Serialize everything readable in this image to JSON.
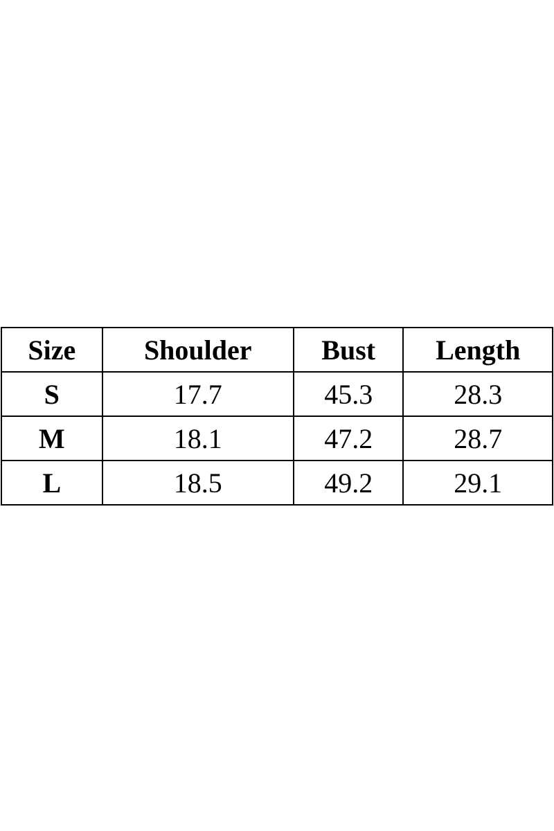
{
  "table": {
    "headers": [
      "Size",
      "Shoulder",
      "Bust",
      "Length"
    ],
    "rows": [
      [
        "S",
        "17.7",
        "45.3",
        "28.3"
      ],
      [
        "M",
        "18.1",
        "47.2",
        "28.7"
      ],
      [
        "L",
        "18.5",
        "49.2",
        "29.1"
      ]
    ]
  }
}
